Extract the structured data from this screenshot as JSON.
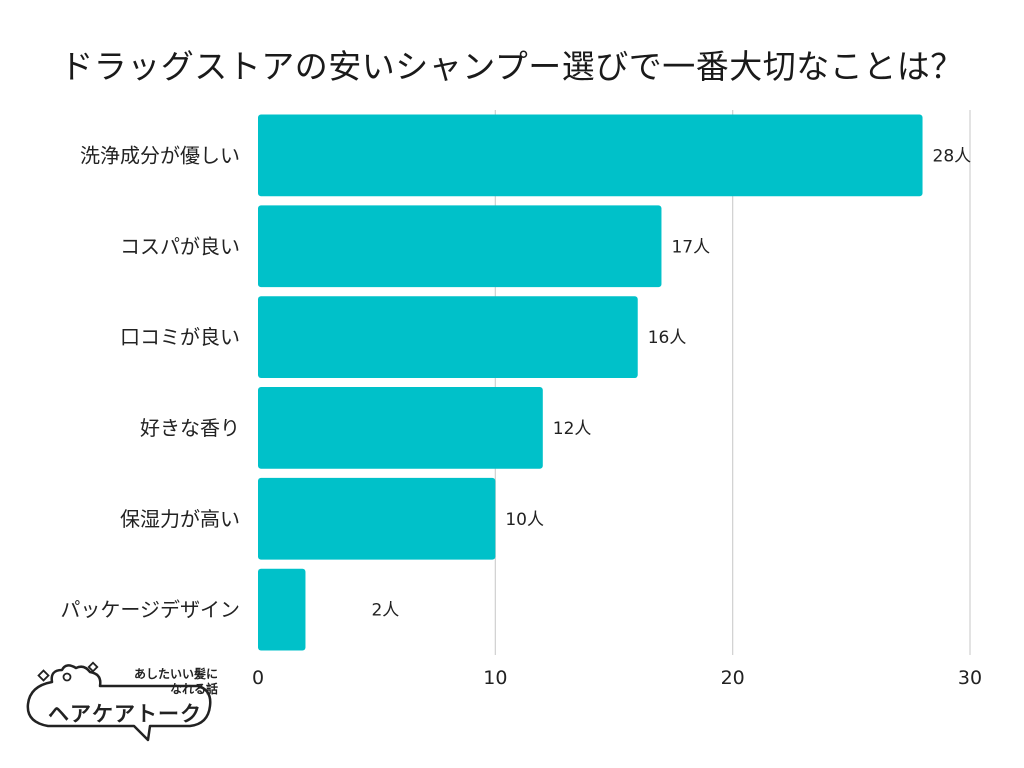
{
  "chart_data": {
    "type": "bar",
    "orientation": "horizontal",
    "title": "ドラッグストアの安いシャンプー選びで一番大切なことは？",
    "categories": [
      "洗浄成分が優しい",
      "コスパが良い",
      "口コミが良い",
      "好きな香り",
      "保湿力が高い",
      "パッケージデザイン"
    ],
    "values": [
      28,
      17,
      16,
      12,
      10,
      2
    ],
    "value_labels": [
      "28人",
      "17人",
      "16人",
      "12人",
      "10人",
      "2人"
    ],
    "xlim": [
      0,
      30
    ],
    "xticks": [
      0,
      10,
      20,
      30
    ],
    "xtick_labels": [
      "0",
      "10",
      "20",
      "30"
    ],
    "grid": true,
    "bar_color": "#00C1C9",
    "xlabel": "",
    "ylabel": ""
  },
  "logo": {
    "tagline_line1": "あしたいい髪に",
    "tagline_line2": "なれる話",
    "name": "ヘアケアトーク"
  }
}
